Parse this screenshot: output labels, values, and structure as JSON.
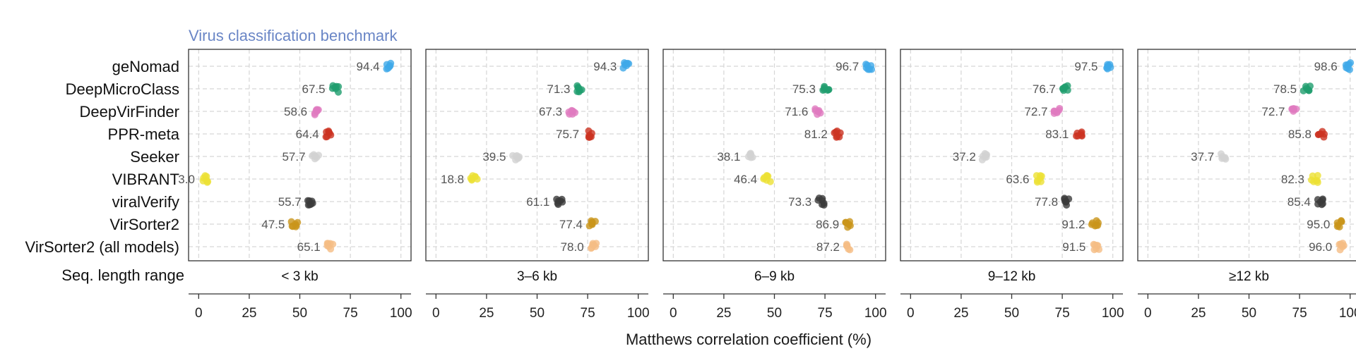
{
  "chart_data": {
    "type": "scatter",
    "title": "Virus classification benchmark",
    "xlabel": "Matthews correlation coefficient (%)",
    "facet_label": "Seq. length range",
    "xlim": [
      -5,
      105
    ],
    "xticks": [
      0,
      25,
      50,
      75,
      100
    ],
    "grid": true,
    "tools": [
      "geNomad",
      "DeepMicroClass",
      "DeepVirFinder",
      "PPR-meta",
      "Seeker",
      "VIBRANT",
      "viralVerify",
      "VirSorter2",
      "VirSorter2 (all models)"
    ],
    "colors": {
      "geNomad": "#3fa9e8",
      "DeepMicroClass": "#1f9d6e",
      "DeepVirFinder": "#e07bbf",
      "PPR-meta": "#cc3322",
      "Seeker": "#d2d2d2",
      "VIBRANT": "#ece134",
      "viralVerify": "#3b3b3b",
      "VirSorter2": "#c9951a",
      "VirSorter2 (all models)": "#f5bd85"
    },
    "panels": [
      {
        "range": "< 3 kb",
        "values": [
          94.4,
          67.5,
          58.6,
          64.4,
          57.7,
          3.0,
          55.7,
          47.5,
          65.1
        ]
      },
      {
        "range": "3–6 kb",
        "values": [
          94.3,
          71.3,
          67.3,
          75.7,
          39.5,
          18.8,
          61.1,
          77.4,
          78.0
        ]
      },
      {
        "range": "6–9 kb",
        "values": [
          96.7,
          75.3,
          71.6,
          81.2,
          38.1,
          46.4,
          73.3,
          86.9,
          87.2
        ]
      },
      {
        "range": "9–12 kb",
        "values": [
          97.5,
          76.7,
          72.7,
          83.1,
          37.2,
          63.6,
          77.8,
          91.2,
          91.5
        ]
      },
      {
        "range": "≥12 kb",
        "values": [
          98.6,
          78.5,
          72.7,
          85.8,
          37.7,
          82.3,
          85.4,
          95.0,
          96.0
        ]
      }
    ]
  }
}
